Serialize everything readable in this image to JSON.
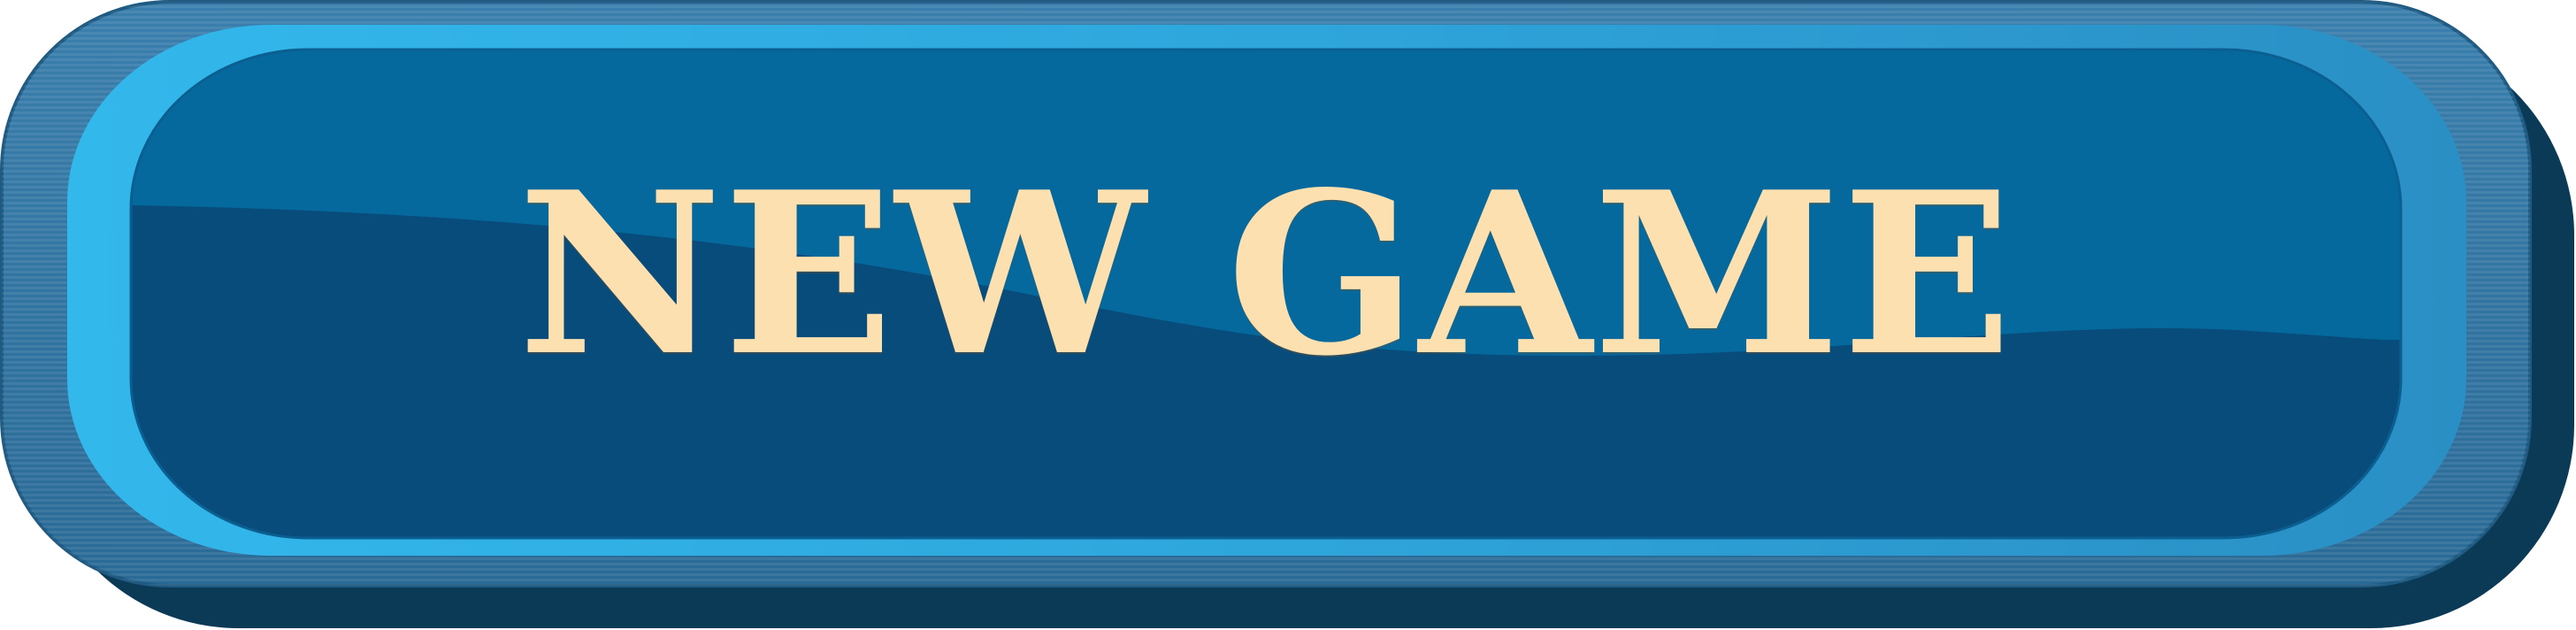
{
  "button": {
    "label": "NEW GAME"
  },
  "colors": {
    "label": "#fce0b0",
    "shadow": "#0a3a55",
    "outer_rim": "#2e6e9a",
    "bezel": "#2c9ad0",
    "bezel_highlight": "#33b8ec",
    "face_top": "#05699e",
    "face_bottom": "#084c7c"
  }
}
